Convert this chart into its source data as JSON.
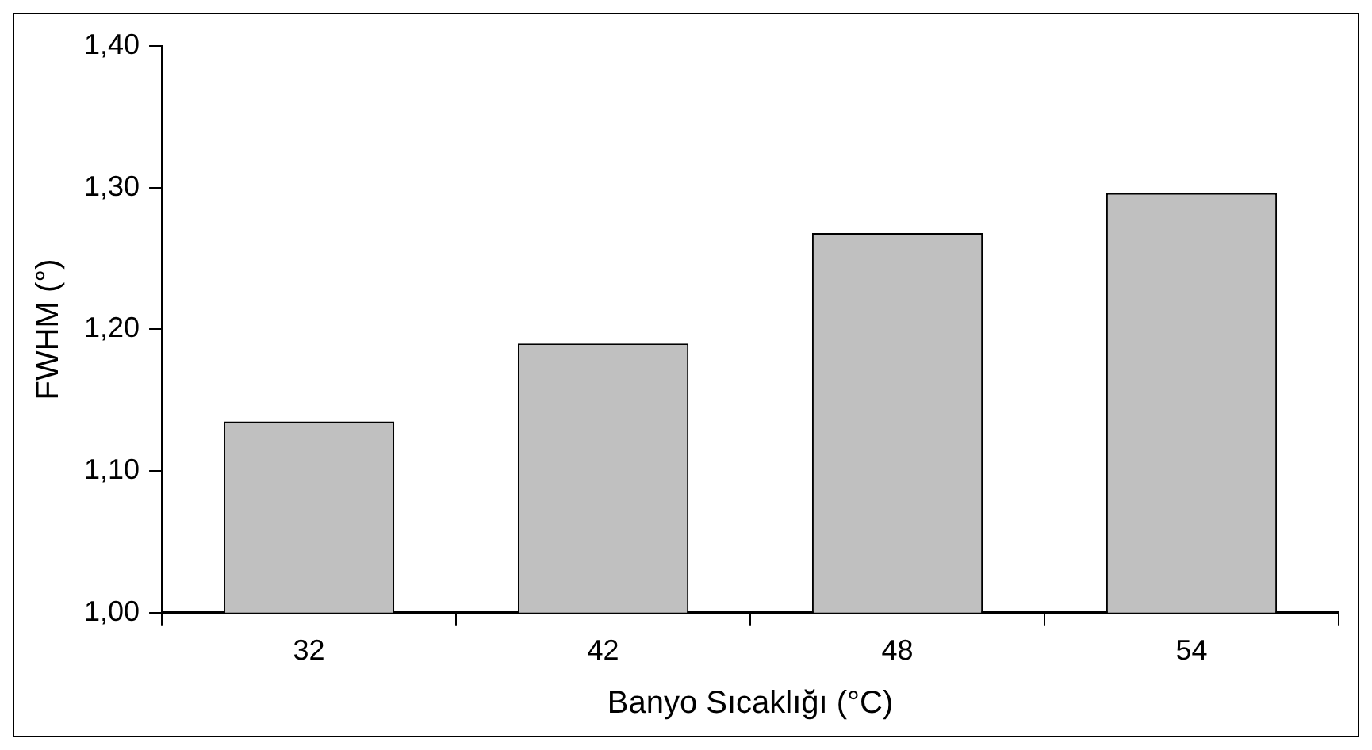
{
  "chart_data": {
    "type": "bar",
    "xlabel": "Banyo Sıcaklığı (°C)",
    "ylabel": "FWHM (°)",
    "categories": [
      "32",
      "42",
      "48",
      "54"
    ],
    "values": [
      1.135,
      1.19,
      1.268,
      1.296
    ],
    "color": "#c0c0c0",
    "ylim": [
      1.0,
      1.4
    ],
    "yticks": [
      {
        "value": 1.0,
        "label": "1,00"
      },
      {
        "value": 1.1,
        "label": "1,10"
      },
      {
        "value": 1.2,
        "label": "1,20"
      },
      {
        "value": 1.3,
        "label": "1,30"
      },
      {
        "value": 1.4,
        "label": "1,40"
      }
    ],
    "grid": false,
    "legend": false
  }
}
